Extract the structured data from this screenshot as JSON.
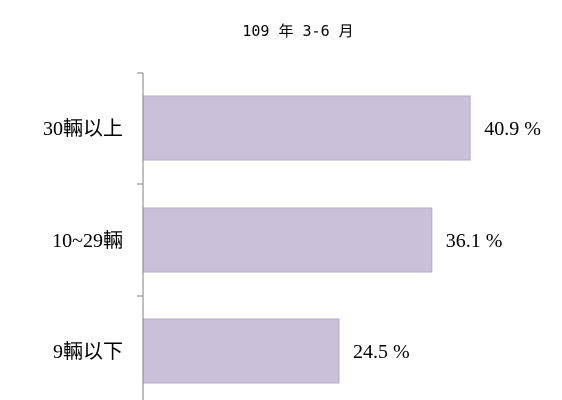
{
  "chart_data": {
    "type": "bar",
    "orientation": "horizontal",
    "title": "109 年 3-6 月",
    "xlabel": "",
    "ylabel": "",
    "categories": [
      "30輛以上",
      "10~29輛",
      "9輛以下"
    ],
    "values": [
      40.9,
      36.1,
      24.5
    ],
    "value_labels": [
      "40.9 %",
      "36.1 %",
      "24.5 %"
    ],
    "unit": "%",
    "xlim": [
      0,
      45
    ],
    "grid": false,
    "legend": "none",
    "bar_color": "#cbc0da"
  }
}
